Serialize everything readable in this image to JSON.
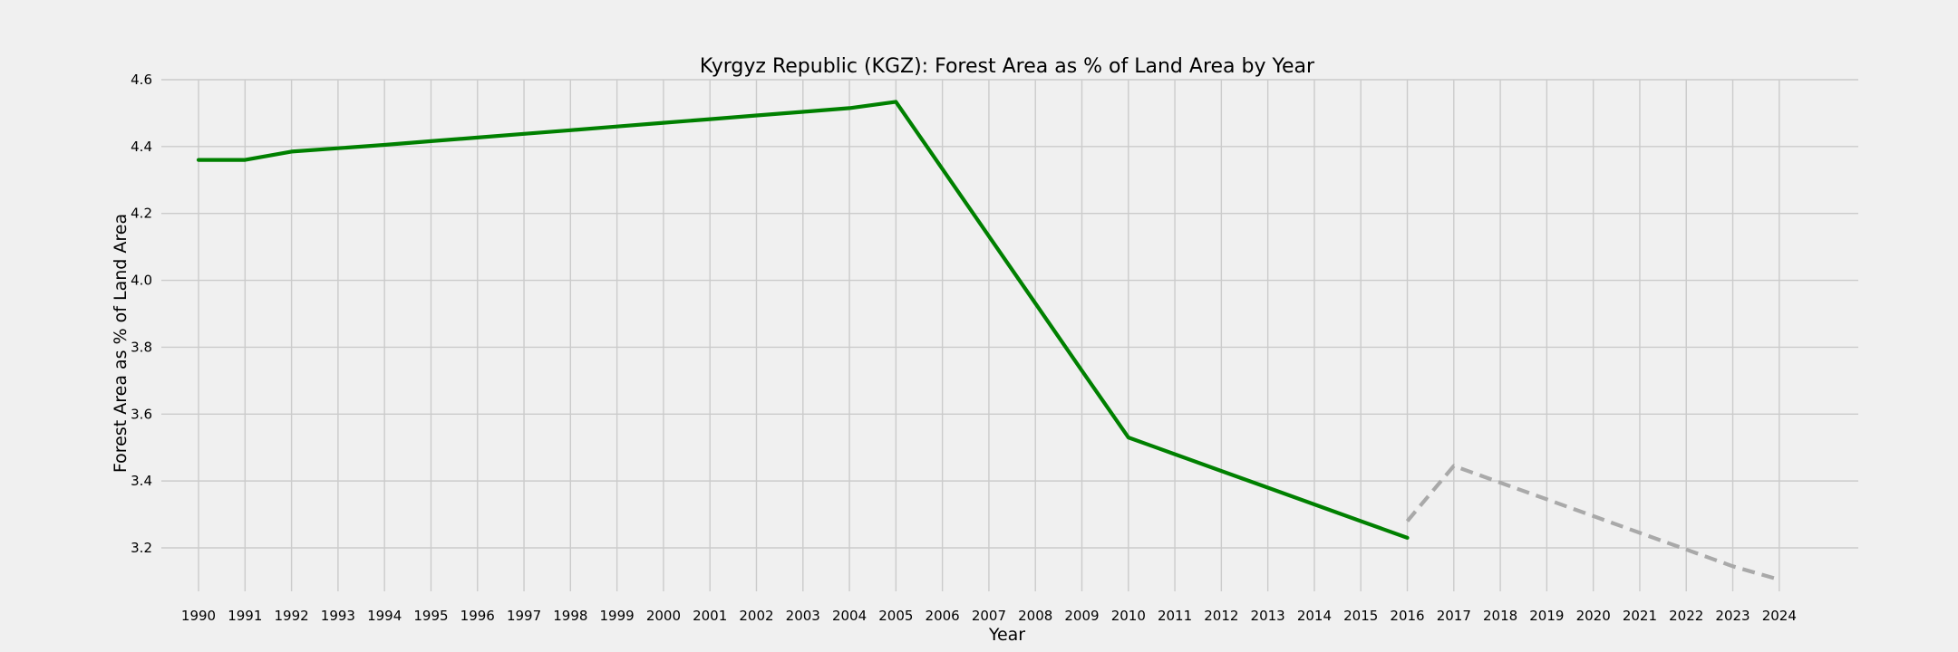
{
  "chart_data": {
    "type": "line",
    "title": "Kyrgyz Republic (KGZ): Forest Area as % of Land Area by Year",
    "xlabel": "Year",
    "ylabel": "Forest Area as % of Land Area",
    "xlim": [
      1989.2,
      2025.7
    ],
    "ylim": [
      3.07,
      4.6
    ],
    "yticks": [
      "3.2",
      "3.4",
      "3.6",
      "3.8",
      "4.0",
      "4.2",
      "4.4",
      "4.6"
    ],
    "xticks": [
      "1990",
      "1991",
      "1992",
      "1993",
      "1994",
      "1995",
      "1996",
      "1997",
      "1998",
      "1999",
      "2000",
      "2001",
      "2002",
      "2003",
      "2004",
      "2005",
      "2006",
      "2007",
      "2008",
      "2009",
      "2010",
      "2011",
      "2012",
      "2013",
      "2014",
      "2015",
      "2016",
      "2017",
      "2018",
      "2019",
      "2020",
      "2021",
      "2022",
      "2023",
      "2024"
    ],
    "grid": true,
    "series": [
      {
        "style": "solid",
        "color": "#008000",
        "x": [
          1990,
          1991,
          1992,
          1993,
          1994,
          1995,
          1996,
          1997,
          1998,
          1999,
          2000,
          2001,
          2002,
          2003,
          2004,
          2005,
          2006,
          2007,
          2008,
          2009,
          2010,
          2011,
          2012,
          2013,
          2014,
          2015,
          2016
        ],
        "y": [
          4.36,
          4.36,
          4.385,
          4.395,
          4.405,
          4.416,
          4.427,
          4.438,
          4.449,
          4.46,
          4.471,
          4.482,
          4.493,
          4.504,
          4.515,
          4.534,
          4.333,
          4.132,
          3.931,
          3.73,
          3.53,
          3.48,
          3.43,
          3.38,
          3.33,
          3.28,
          3.23
        ]
      },
      {
        "style": "dashed",
        "color": "#a9a9a9",
        "x": [
          2016,
          2017,
          2018,
          2019,
          2020,
          2021,
          2022,
          2023,
          2024
        ],
        "y": [
          3.28,
          3.445,
          3.395,
          3.345,
          3.295,
          3.245,
          3.195,
          3.145,
          3.105
        ]
      }
    ]
  }
}
